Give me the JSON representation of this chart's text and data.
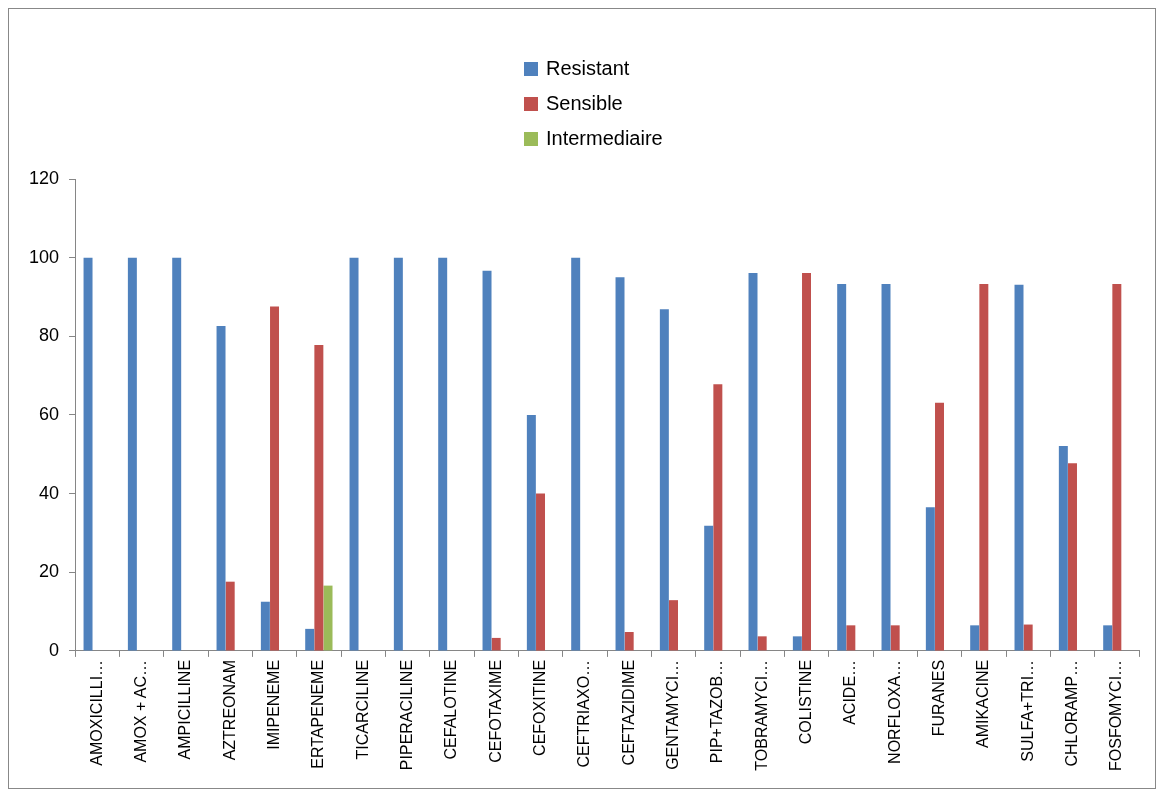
{
  "chart_data": {
    "type": "bar",
    "categories": [
      "AMOXICILLI…",
      "AMOX + AC…",
      "AMPICILLINE",
      "AZTREONAM",
      "IMIPENEME",
      "ERTAPENEME",
      "TICARCILINE",
      "PIPERACILINE",
      "CEFALOTINE",
      "CEFOTAXIME",
      "CEFOXITINE",
      "CEFTRIAXO…",
      "CEFTAZIDIME",
      "GENTAMYCI…",
      "PIP+TAZOB…",
      "TOBRAMYCI…",
      "COLISTINE",
      "ACIDE…",
      "NORFLOXA…",
      "FURANES",
      "AMIKACINE",
      "SULFA+TRI…",
      "CHLORAMP…",
      "FOSFOMYCI…"
    ],
    "series": [
      {
        "name": "Resistant",
        "color": "#4f81bd",
        "values": [
          100,
          100,
          100,
          82.6,
          12.5,
          5.6,
          100,
          100,
          100,
          96.7,
          60,
          100,
          95,
          86.9,
          31.8,
          96.1,
          3.7,
          93.3,
          93.3,
          36.5,
          6.5,
          93.1,
          52.1,
          6.5
        ]
      },
      {
        "name": "Sensible",
        "color": "#c0504d",
        "values": [
          null,
          null,
          null,
          17.6,
          87.6,
          77.8,
          null,
          null,
          null,
          3.3,
          40,
          null,
          4.8,
          12.9,
          67.8,
          3.7,
          96.1,
          6.5,
          6.5,
          63.1,
          93.3,
          6.7,
          47.7,
          93.3
        ]
      },
      {
        "name": "Intermediaire",
        "color": "#9bbb59",
        "values": [
          null,
          null,
          null,
          null,
          null,
          16.6,
          null,
          null,
          null,
          null,
          null,
          null,
          null,
          null,
          null,
          null,
          null,
          null,
          null,
          null,
          null,
          null,
          null,
          null
        ]
      }
    ],
    "ylim": [
      0,
      120
    ],
    "yticks": [
      0,
      20,
      40,
      60,
      80,
      100,
      120
    ],
    "grid": false,
    "legend": "top"
  }
}
